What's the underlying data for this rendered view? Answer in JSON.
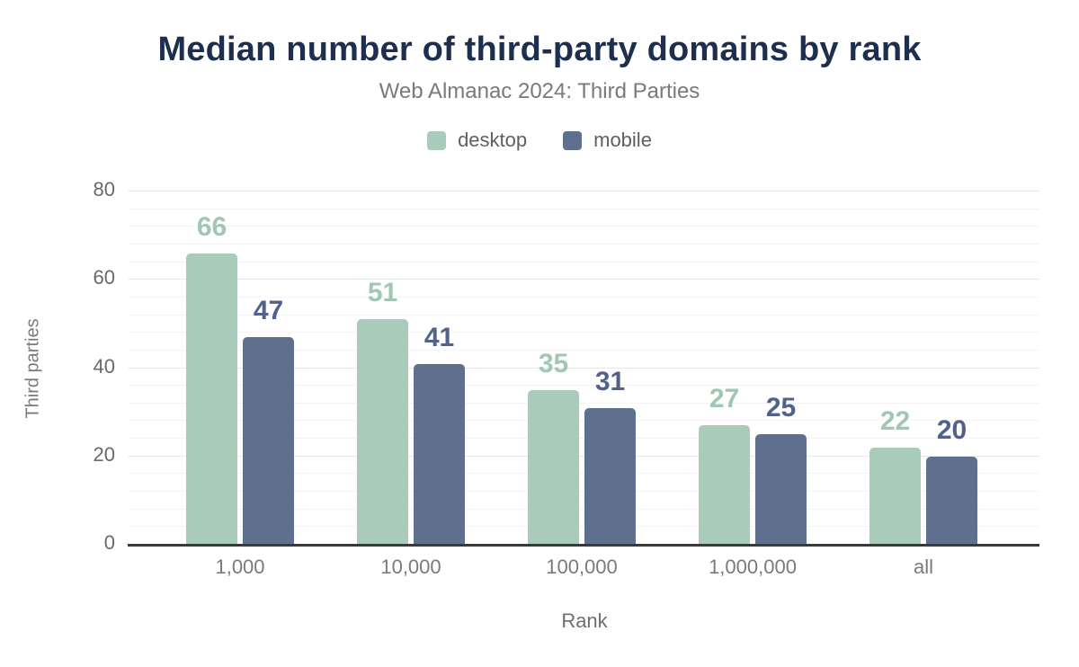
{
  "header": {
    "title": "Median number of third-party domains by rank",
    "subtitle": "Web Almanac 2024: Third Parties"
  },
  "legend": [
    {
      "label": "desktop",
      "color": "#a9cbb9"
    },
    {
      "label": "mobile",
      "color": "#5e708e"
    }
  ],
  "chart_data": {
    "type": "bar",
    "title": "Median number of third-party domains by rank",
    "subtitle": "Web Almanac 2024: Third Parties",
    "categories": [
      "1,000",
      "10,000",
      "100,000",
      "1,000,000",
      "all"
    ],
    "series": [
      {
        "name": "desktop",
        "color": "#a9cbb9",
        "label_color": "#9fc7b2",
        "values": [
          66,
          51,
          35,
          27,
          22
        ]
      },
      {
        "name": "mobile",
        "color": "#5e708e",
        "label_color": "#50628a",
        "values": [
          47,
          41,
          31,
          25,
          20
        ]
      }
    ],
    "xlabel": "Rank",
    "ylabel": "Third parties",
    "ylim": [
      0,
      80
    ],
    "yticks": [
      0,
      20,
      40,
      60,
      80
    ],
    "minor_grid_step": 4,
    "grid": "on",
    "legend_position": "top",
    "bar_value_labels": "above"
  },
  "colors": {
    "background": "#ffffff",
    "title": "#1e2e4e",
    "subtitle": "#7a7a7a",
    "axis_line": "#3a3a3c",
    "major_gridline": "#e8e8e8",
    "minor_gridline": "#f4f4f4",
    "tick_text": "#696969"
  }
}
